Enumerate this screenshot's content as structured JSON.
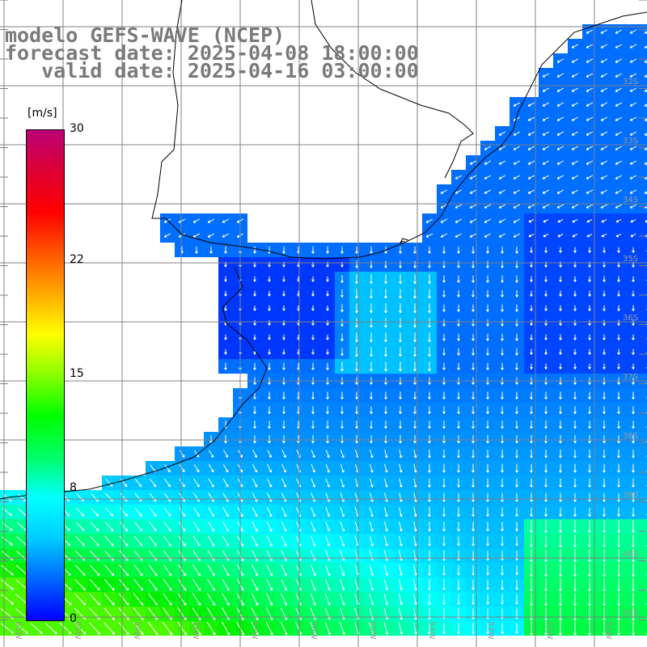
{
  "title": {
    "line1": "modelo GEFS-WAVE (NCEP)",
    "line2": "forecast date: 2025-04-08 18:00:00",
    "line3": "   valid date: 2025-04-16 03:00:00"
  },
  "colorbar": {
    "unit": "[m/s]",
    "ticks": [
      {
        "label": "30",
        "value": 30
      },
      {
        "label": "22",
        "value": 22
      },
      {
        "label": "15",
        "value": 15
      },
      {
        "label": "8",
        "value": 8
      },
      {
        "label": "0",
        "value": 0
      }
    ],
    "colors": [
      "#0000ff",
      "#0066ff",
      "#00ccff",
      "#00ffff",
      "#00ff66",
      "#00ff00",
      "#88ff00",
      "#ffff00",
      "#ffaa00",
      "#ff5500",
      "#ff0000",
      "#dd0033",
      "#bb0077"
    ]
  },
  "grid_labels": {
    "lat": [
      "32S",
      "33S",
      "34S",
      "35S",
      "36S",
      "37S",
      "38S",
      "39S",
      "40S",
      "41S"
    ],
    "lon": [
      "61W",
      "60W",
      "59W",
      "58W",
      "57W",
      "56W",
      "55W",
      "54W",
      "53W",
      "52W",
      "51W"
    ]
  },
  "wind_field": {
    "units": "m/s",
    "note_regions": "calm blue near coast, green to south-west"
  }
}
